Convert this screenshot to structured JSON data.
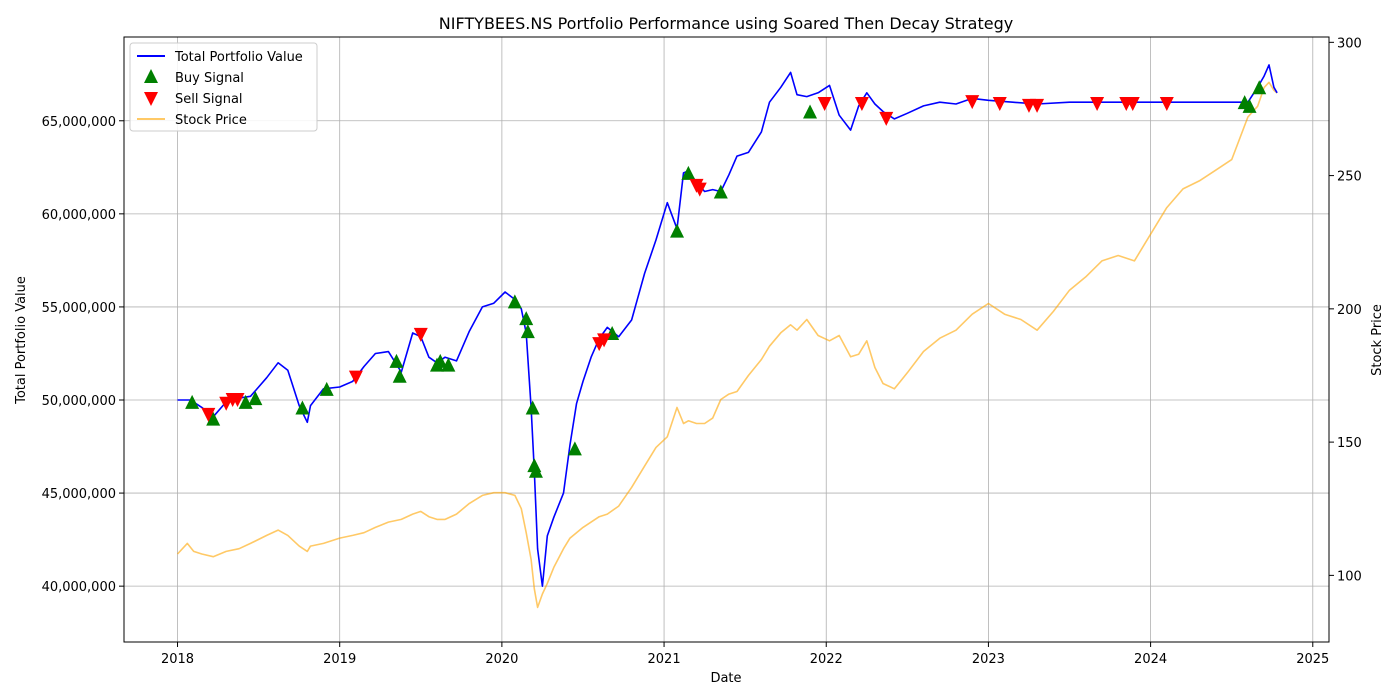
{
  "chart_data": {
    "type": "line",
    "title": "NIFTYBEES.NS Portfolio Performance using Soared Then Decay Strategy",
    "xlabel": "Date",
    "ylabel": "Total Portfolio Value",
    "ylabel_right": "Stock Price",
    "xlim": [
      2017.67,
      2025.1
    ],
    "ylim": [
      37000000,
      69500000
    ],
    "ylim_right": [
      75,
      302
    ],
    "x_ticks": [
      2018,
      2019,
      2020,
      2021,
      2022,
      2023,
      2024,
      2025
    ],
    "x_tick_labels": [
      "2018",
      "2019",
      "2020",
      "2021",
      "2022",
      "2023",
      "2024",
      "2025"
    ],
    "y_ticks": [
      40000000,
      45000000,
      50000000,
      55000000,
      60000000,
      65000000
    ],
    "y_tick_labels": [
      "40,000,000",
      "45,000,000",
      "50,000,000",
      "55,000,000",
      "60,000,000",
      "65,000,000"
    ],
    "y_ticks_right": [
      100,
      150,
      200,
      250,
      300
    ],
    "y_tick_labels_right": [
      "100",
      "150",
      "200",
      "250",
      "300"
    ],
    "grid": true,
    "legend_position": "top-left",
    "legend": [
      "Total Portfolio Value",
      "Buy Signal",
      "Sell Signal",
      "Stock Price"
    ],
    "colors": {
      "portfolio": "#0000ff",
      "buy": "#008000",
      "sell": "#ff0000",
      "price": "#ffa500",
      "overlap": "#7f5a7f"
    },
    "series": [
      {
        "name": "Total Portfolio Value",
        "axis": "left",
        "x": [
          2018.0,
          2018.08,
          2018.15,
          2018.22,
          2018.3,
          2018.38,
          2018.45,
          2018.55,
          2018.62,
          2018.68,
          2018.75,
          2018.8,
          2018.82,
          2018.9,
          2019.0,
          2019.08,
          2019.15,
          2019.22,
          2019.3,
          2019.38,
          2019.45,
          2019.5,
          2019.55,
          2019.6,
          2019.65,
          2019.72,
          2019.8,
          2019.88,
          2019.95,
          2020.02,
          2020.08,
          2020.12,
          2020.15,
          2020.18,
          2020.2,
          2020.22,
          2020.25,
          2020.28,
          2020.32,
          2020.38,
          2020.42,
          2020.46,
          2020.5,
          2020.55,
          2020.6,
          2020.65,
          2020.72,
          2020.8,
          2020.88,
          2020.95,
          2021.02,
          2021.08,
          2021.12,
          2021.15,
          2021.2,
          2021.25,
          2021.3,
          2021.35,
          2021.4,
          2021.45,
          2021.52,
          2021.6,
          2021.65,
          2021.72,
          2021.78,
          2021.82,
          2021.88,
          2021.95,
          2022.02,
          2022.08,
          2022.15,
          2022.2,
          2022.25,
          2022.3,
          2022.35,
          2022.42,
          2022.5,
          2022.6,
          2022.7,
          2022.8,
          2022.9,
          2023.0,
          2023.15,
          2023.3,
          2023.5,
          2023.7,
          2023.9,
          2024.1,
          2024.3,
          2024.5,
          2024.6,
          2024.66,
          2024.7,
          2024.73,
          2024.76,
          2024.78
        ],
        "values": [
          50000000,
          50000000,
          49600000,
          49100000,
          49900000,
          50100000,
          50200000,
          51200000,
          52000000,
          51600000,
          49700000,
          48800000,
          49700000,
          50600000,
          50700000,
          51000000,
          51800000,
          52500000,
          52600000,
          51500000,
          53600000,
          53400000,
          52300000,
          52000000,
          52300000,
          52100000,
          53700000,
          55000000,
          55200000,
          55800000,
          55400000,
          54900000,
          53600000,
          49600000,
          46200000,
          42000000,
          40000000,
          42700000,
          43700000,
          45000000,
          47600000,
          49800000,
          51000000,
          52300000,
          53300000,
          53900000,
          53400000,
          54300000,
          56800000,
          58600000,
          60600000,
          59200000,
          62200000,
          62300000,
          61700000,
          61200000,
          61300000,
          61200000,
          62100000,
          63100000,
          63300000,
          64400000,
          66000000,
          66800000,
          67600000,
          66400000,
          66300000,
          66500000,
          66900000,
          65300000,
          64500000,
          65800000,
          66500000,
          65900000,
          65500000,
          65100000,
          65400000,
          65800000,
          66000000,
          65900000,
          66200000,
          66100000,
          66000000,
          65900000,
          66000000,
          66000000,
          66000000,
          66000000,
          66000000,
          66000000,
          66000000,
          66800000,
          67400000,
          68000000,
          66800000,
          66500000
        ]
      },
      {
        "name": "Stock Price",
        "axis": "right",
        "x": [
          2018.0,
          2018.06,
          2018.1,
          2018.15,
          2018.22,
          2018.3,
          2018.38,
          2018.45,
          2018.55,
          2018.62,
          2018.68,
          2018.75,
          2018.8,
          2018.82,
          2018.9,
          2019.0,
          2019.08,
          2019.15,
          2019.22,
          2019.3,
          2019.38,
          2019.45,
          2019.5,
          2019.55,
          2019.6,
          2019.65,
          2019.72,
          2019.8,
          2019.88,
          2019.95,
          2020.02,
          2020.08,
          2020.12,
          2020.15,
          2020.18,
          2020.2,
          2020.22,
          2020.25,
          2020.28,
          2020.32,
          2020.38,
          2020.42,
          2020.46,
          2020.5,
          2020.55,
          2020.6,
          2020.65,
          2020.72,
          2020.8,
          2020.88,
          2020.95,
          2021.02,
          2021.08,
          2021.12,
          2021.15,
          2021.2,
          2021.25,
          2021.3,
          2021.35,
          2021.4,
          2021.45,
          2021.52,
          2021.6,
          2021.65,
          2021.72,
          2021.78,
          2021.82,
          2021.88,
          2021.95,
          2022.02,
          2022.08,
          2022.15,
          2022.2,
          2022.25,
          2022.3,
          2022.35,
          2022.42,
          2022.5,
          2022.6,
          2022.7,
          2022.8,
          2022.9,
          2023.0,
          2023.1,
          2023.2,
          2023.3,
          2023.4,
          2023.5,
          2023.6,
          2023.7,
          2023.8,
          2023.9,
          2024.0,
          2024.1,
          2024.2,
          2024.3,
          2024.4,
          2024.5,
          2024.6,
          2024.66,
          2024.7,
          2024.73,
          2024.76,
          2024.78
        ],
        "values": [
          108,
          112,
          109,
          108,
          107,
          109,
          110,
          112,
          115,
          117,
          115,
          111,
          109,
          111,
          112,
          114,
          115,
          116,
          118,
          120,
          121,
          123,
          124,
          122,
          121,
          121,
          123,
          127,
          130,
          131,
          131,
          130,
          125,
          116,
          106,
          95,
          88,
          93,
          97,
          103,
          110,
          114,
          116,
          118,
          120,
          122,
          123,
          126,
          133,
          141,
          148,
          152,
          163,
          157,
          158,
          157,
          157,
          159,
          166,
          168,
          169,
          175,
          181,
          186,
          191,
          194,
          192,
          196,
          190,
          188,
          190,
          182,
          183,
          188,
          178,
          172,
          170,
          176,
          184,
          189,
          192,
          198,
          202,
          198,
          196,
          192,
          199,
          207,
          212,
          218,
          220,
          218,
          228,
          238,
          245,
          248,
          252,
          256,
          272,
          276,
          283,
          285,
          282,
          281
        ]
      }
    ],
    "buy_signals": {
      "x": [
        2018.09,
        2018.22,
        2018.42,
        2018.48,
        2018.77,
        2018.92,
        2019.35,
        2019.37,
        2019.6,
        2019.62,
        2019.67,
        2020.08,
        2020.15,
        2020.16,
        2020.19,
        2020.2,
        2020.21,
        2020.45,
        2020.68,
        2021.08,
        2021.15,
        2021.35,
        2021.9,
        2024.58,
        2024.61,
        2024.67
      ],
      "values": [
        49900000,
        49000000,
        49900000,
        50100000,
        49600000,
        50600000,
        52100000,
        51300000,
        51900000,
        52100000,
        51900000,
        55300000,
        54400000,
        53700000,
        49600000,
        46500000,
        46200000,
        47400000,
        53600000,
        59100000,
        62200000,
        61200000,
        65500000,
        66000000,
        65800000,
        66800000
      ]
    },
    "sell_signals": {
      "x": [
        2018.19,
        2018.3,
        2018.34,
        2018.37,
        2019.1,
        2019.5,
        2020.6,
        2020.63,
        2021.2,
        2021.22,
        2021.99,
        2022.22,
        2022.37,
        2022.9,
        2023.07,
        2023.25,
        2023.3,
        2023.67,
        2023.85,
        2023.89,
        2024.1
      ],
      "values": [
        49200000,
        49800000,
        50000000,
        50000000,
        51200000,
        53500000,
        53000000,
        53200000,
        61500000,
        61300000,
        65900000,
        65900000,
        65100000,
        66000000,
        65900000,
        65800000,
        65800000,
        65900000,
        65900000,
        65900000,
        65900000
      ]
    }
  }
}
